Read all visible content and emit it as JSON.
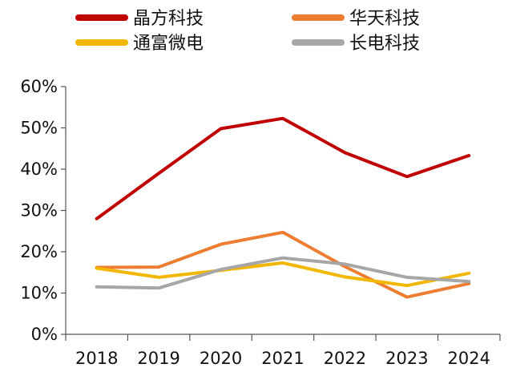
{
  "chart_data": {
    "type": "line",
    "categories": [
      "2018",
      "2019",
      "2020",
      "2021",
      "2022",
      "2023",
      "2024"
    ],
    "series": [
      {
        "name": "晶方科技",
        "color": "#C00000",
        "values": [
          28.0,
          39.0,
          49.8,
          52.3,
          44.0,
          38.2,
          43.3
        ]
      },
      {
        "name": "华天科技",
        "color": "#ED7D31",
        "values": [
          16.2,
          16.3,
          21.8,
          24.7,
          16.4,
          9.0,
          12.3
        ]
      },
      {
        "name": "通富微电",
        "color": "#F2B700",
        "values": [
          16.0,
          13.8,
          15.5,
          17.3,
          13.9,
          11.8,
          14.8
        ]
      },
      {
        "name": "长电科技",
        "color": "#A6A6A6",
        "values": [
          11.5,
          11.2,
          15.7,
          18.5,
          17.0,
          13.8,
          12.8
        ]
      }
    ],
    "ylim": [
      0,
      60
    ],
    "yticks": [
      0,
      10,
      20,
      30,
      40,
      50,
      60
    ],
    "ytick_labels": [
      "0%",
      "10%",
      "20%",
      "30%",
      "40%",
      "50%",
      "60%"
    ],
    "grid": false,
    "legend_position": "top"
  }
}
